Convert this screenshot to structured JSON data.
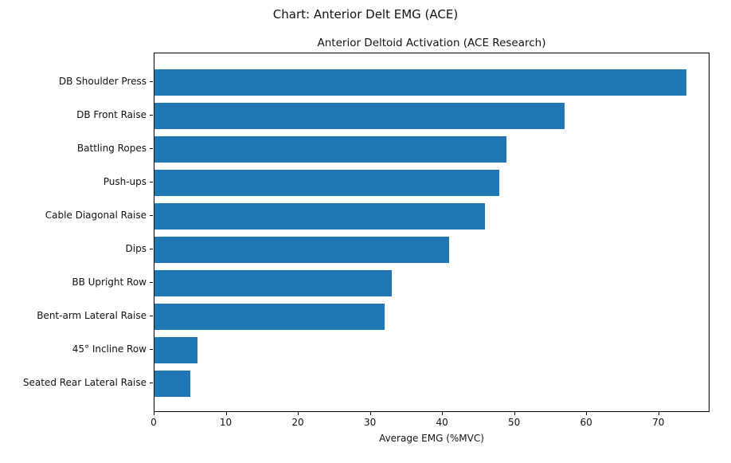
{
  "figure": {
    "title": "Chart: Anterior Delt EMG (ACE)"
  },
  "chart_data": {
    "type": "bar",
    "orientation": "horizontal",
    "title": "Anterior Deltoid Activation (ACE Research)",
    "xlabel": "Average EMG (%MVC)",
    "categories": [
      "DB Shoulder Press",
      "DB Front Raise",
      "Battling Ropes",
      "Push-ups",
      "Cable Diagonal Raise",
      "Dips",
      "BB Upright Row",
      "Bent-arm Lateral Raise",
      "45° Incline Row",
      "Seated Rear Lateral Raise"
    ],
    "values": [
      74,
      57,
      49,
      48,
      46,
      41,
      33,
      32,
      6,
      5
    ],
    "xlim": [
      0,
      77.1
    ],
    "xticks": [
      0,
      10,
      20,
      30,
      40,
      50,
      60,
      70
    ],
    "bar_color": "#1f77b4",
    "grid": false,
    "legend": "none"
  }
}
